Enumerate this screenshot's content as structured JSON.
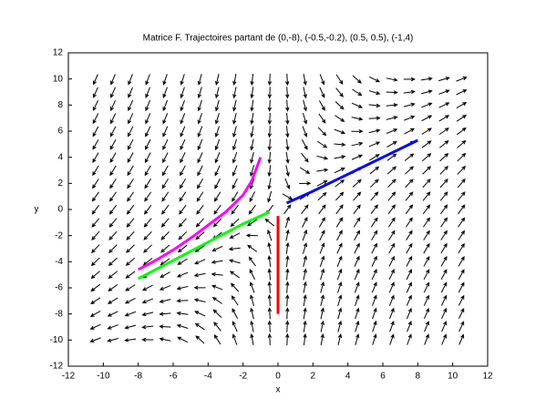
{
  "chart_data": {
    "type": "line",
    "title": "Matrice F. Trajectoires partant de (0,-8), (-0.5,-0.2), (0.5, 0.5), (-1,4)",
    "x_label": "x",
    "y_label": "y",
    "xlim": [
      -12,
      12
    ],
    "ylim": [
      -12,
      12
    ],
    "xticks": [
      -12,
      -10,
      -8,
      -6,
      -4,
      -2,
      0,
      2,
      4,
      6,
      8,
      10,
      12
    ],
    "yticks": [
      -12,
      -10,
      -8,
      -6,
      -4,
      -2,
      0,
      2,
      4,
      6,
      8,
      10,
      12
    ],
    "series": [
      {
        "color": "#ff0000",
        "x": [
          0,
          0,
          0,
          0,
          0
        ],
        "y": [
          -8,
          -4,
          -2,
          -1,
          -0.5
        ]
      },
      {
        "color": "#00ff00",
        "x": [
          -0.5,
          -2,
          -4,
          -6,
          -8
        ],
        "y": [
          -0.2,
          -1.1,
          -2.5,
          -3.9,
          -5.3
        ]
      },
      {
        "color": "#0000ff",
        "x": [
          0.5,
          2,
          4,
          6,
          8
        ],
        "y": [
          0.5,
          1.4,
          2.7,
          4.0,
          5.3
        ]
      },
      {
        "color": "#ff00ff",
        "x": [
          -1,
          -1.5,
          -2,
          -3,
          -4,
          -5,
          -6,
          -7,
          -8
        ],
        "y": [
          4,
          2.2,
          1.1,
          -0.2,
          -1.2,
          -2.2,
          -3.1,
          -3.9,
          -4.6
        ]
      }
    ]
  }
}
